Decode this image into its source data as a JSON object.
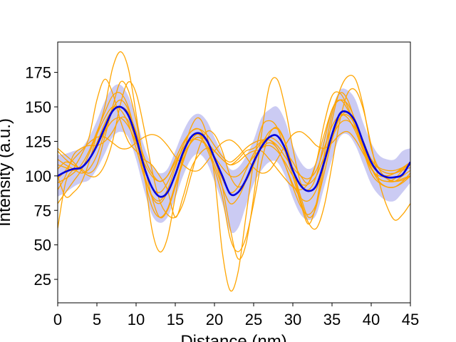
{
  "chart_data": {
    "type": "line",
    "title": "",
    "xlabel": "Distance (nm)",
    "ylabel": "Intensity (a.u.)",
    "xlim": [
      0,
      45
    ],
    "ylim": [
      8,
      197
    ],
    "xticks": [
      0,
      5,
      10,
      15,
      20,
      25,
      30,
      35,
      40,
      45
    ],
    "yticks": [
      25,
      50,
      75,
      100,
      125,
      150,
      175
    ],
    "grid": false,
    "legend": "none",
    "colors": {
      "individual": "#FFA500",
      "mean": "#0000DD",
      "band": "#C8C8F2"
    },
    "x": [
      0,
      1,
      2,
      3,
      4,
      5,
      6,
      7,
      8,
      9,
      10,
      11,
      12,
      13,
      14,
      15,
      16,
      17,
      18,
      19,
      20,
      21,
      22,
      23,
      24,
      25,
      26,
      27,
      28,
      29,
      30,
      31,
      32,
      33,
      34,
      35,
      36,
      37,
      38,
      39,
      40,
      41,
      42,
      43,
      44,
      45
    ],
    "mean_profile": [
      100,
      103,
      105,
      106,
      112,
      122,
      135,
      147,
      150,
      144,
      128,
      107,
      92,
      85,
      88,
      101,
      117,
      128,
      131,
      126,
      113,
      100,
      87,
      88,
      97,
      110,
      121,
      128,
      129,
      120,
      104,
      93,
      89,
      93,
      110,
      130,
      145,
      146,
      139,
      124,
      110,
      102,
      99,
      99,
      101,
      110
    ],
    "band": {
      "upper": [
        115,
        116,
        118,
        120,
        128,
        140,
        154,
        164,
        166,
        158,
        142,
        122,
        108,
        102,
        105,
        118,
        132,
        142,
        145,
        140,
        128,
        116,
        105,
        106,
        114,
        126,
        142,
        148,
        150,
        140,
        122,
        110,
        105,
        110,
        128,
        148,
        162,
        162,
        155,
        138,
        124,
        115,
        112,
        112,
        118,
        120
      ],
      "lower": [
        85,
        88,
        92,
        95,
        97,
        105,
        116,
        128,
        132,
        128,
        112,
        90,
        72,
        66,
        70,
        84,
        100,
        112,
        116,
        110,
        96,
        80,
        60,
        62,
        78,
        94,
        104,
        110,
        110,
        100,
        84,
        72,
        68,
        72,
        92,
        112,
        128,
        130,
        122,
        108,
        94,
        86,
        82,
        82,
        88,
        95
      ]
    },
    "series": [
      {
        "values": [
          62,
          95,
          105,
          115,
          128,
          155,
          170,
          160,
          140,
          125,
          118,
          112,
          108,
          100,
          90,
          70,
          85,
          105,
          115,
          120,
          118,
          112,
          108,
          112,
          118,
          120,
          125,
          128,
          125,
          118,
          110,
          100,
          95,
          110,
          138,
          158,
          160,
          150,
          135,
          118,
          105,
          100,
          100,
          102,
          105,
          108
        ]
      },
      {
        "values": [
          90,
          100,
          115,
          120,
          122,
          122,
          125,
          132,
          142,
          140,
          125,
          102,
          85,
          80,
          88,
          100,
          115,
          124,
          128,
          122,
          112,
          92,
          62,
          40,
          50,
          85,
          130,
          165,
          170,
          150,
          120,
          95,
          90,
          100,
          125,
          148,
          155,
          148,
          135,
          120,
          108,
          102,
          98,
          96,
          97,
          100
        ]
      },
      {
        "values": [
          112,
          108,
          105,
          102,
          105,
          115,
          132,
          150,
          168,
          162,
          140,
          110,
          85,
          70,
          75,
          92,
          110,
          125,
          130,
          120,
          105,
          85,
          55,
          45,
          55,
          80,
          110,
          130,
          135,
          125,
          105,
          85,
          70,
          78,
          108,
          140,
          162,
          172,
          170,
          150,
          120,
          105,
          98,
          96,
          98,
          100
        ]
      },
      {
        "values": [
          100,
          85,
          88,
          95,
          110,
          130,
          150,
          178,
          190,
          178,
          145,
          105,
          62,
          45,
          55,
          85,
          115,
          135,
          142,
          130,
          100,
          45,
          17,
          30,
          70,
          110,
          135,
          140,
          135,
          118,
          100,
          80,
          65,
          80,
          115,
          145,
          160,
          155,
          138,
          118,
          102,
          95,
          92,
          92,
          95,
          100
        ]
      },
      {
        "values": [
          105,
          110,
          108,
          105,
          102,
          108,
          128,
          148,
          155,
          148,
          130,
          108,
          92,
          88,
          95,
          108,
          120,
          128,
          130,
          125,
          118,
          112,
          108,
          110,
          115,
          118,
          118,
          112,
          105,
          98,
          92,
          90,
          95,
          110,
          130,
          148,
          155,
          152,
          140,
          125,
          112,
          105,
          102,
          102,
          104,
          106
        ]
      },
      {
        "values": [
          118,
          112,
          108,
          106,
          112,
          124,
          138,
          148,
          150,
          146,
          132,
          114,
          102,
          96,
          100,
          112,
          124,
          132,
          134,
          130,
          122,
          114,
          110,
          114,
          120,
          124,
          126,
          126,
          122,
          114,
          106,
          100,
          98,
          104,
          120,
          136,
          144,
          142,
          132,
          118,
          108,
          102,
          100,
          102,
          106,
          110
        ]
      },
      {
        "values": [
          95,
          98,
          102,
          108,
          118,
          132,
          146,
          158,
          160,
          150,
          128,
          100,
          78,
          70,
          76,
          94,
          112,
          124,
          128,
          122,
          108,
          92,
          80,
          84,
          96,
          110,
          120,
          124,
          120,
          108,
          92,
          78,
          72,
          80,
          102,
          126,
          142,
          146,
          138,
          122,
          106,
          96,
          92,
          92,
          96,
          102
        ]
      },
      {
        "values": [
          80,
          88,
          96,
          104,
          116,
          130,
          142,
          150,
          148,
          138,
          120,
          100,
          86,
          82,
          90,
          106,
          122,
          132,
          134,
          126,
          112,
          98,
          88,
          92,
          104,
          116,
          124,
          126,
          120,
          108,
          94,
          84,
          82,
          90,
          108,
          128,
          142,
          144,
          136,
          120,
          106,
          98,
          96,
          98,
          104,
          110
        ]
      },
      {
        "values": [
          108,
          106,
          104,
          106,
          112,
          122,
          132,
          140,
          142,
          136,
          124,
          110,
          100,
          96,
          100,
          110,
          120,
          126,
          126,
          122,
          114,
          106,
          100,
          100,
          106,
          114,
          120,
          122,
          118,
          110,
          100,
          94,
          94,
          100,
          114,
          128,
          138,
          140,
          134,
          122,
          112,
          106,
          104,
          104,
          106,
          108
        ]
      },
      {
        "values": [
          98,
          104,
          112,
          118,
          124,
          128,
          128,
          124,
          120,
          120,
          124,
          128,
          130,
          128,
          122,
          114,
          108,
          104,
          104,
          110,
          118,
          124,
          126,
          122,
          114,
          106,
          102,
          104,
          112,
          122,
          130,
          132,
          128,
          122,
          120,
          124,
          130,
          132,
          126,
          116,
          106,
          98,
          96,
          96,
          100,
          104
        ]
      },
      {
        "values": [
          120,
          115,
          110,
          104,
          100,
          100,
          108,
          125,
          152,
          168,
          160,
          135,
          105,
          82,
          72,
          70,
          80,
          100,
          120,
          132,
          130,
          118,
          100,
          92,
          96,
          108,
          122,
          132,
          134,
          124,
          104,
          82,
          66,
          62,
          78,
          108,
          140,
          160,
          162,
          148,
          122,
          96,
          78,
          68,
          72,
          80
        ]
      }
    ]
  }
}
